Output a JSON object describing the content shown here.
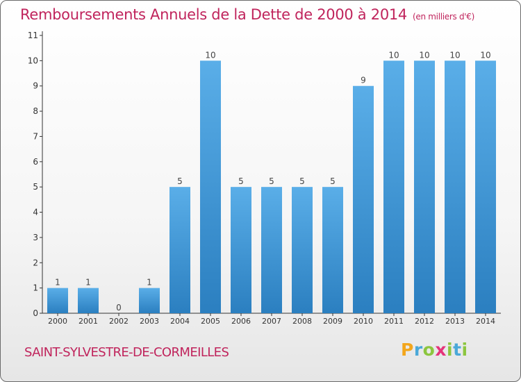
{
  "title": "Remboursements Annuels de la Dette de 2000 à 2014",
  "subtitle": "(en milliers d'€)",
  "commune": "SAINT-SYLVESTRE-DE-CORMEILLES",
  "logo": {
    "letters": [
      "P",
      "r",
      "o",
      "x",
      "i",
      "t",
      "i"
    ],
    "colors": [
      "#f3a61c",
      "#4aa8d8",
      "#8cc63f",
      "#e5337a",
      "#8cc63f",
      "#4aa8d8",
      "#8cc63f"
    ]
  },
  "colors": {
    "title": "#c0245c",
    "bar_light": "#5aaee8",
    "bar_dark": "#2b7fc0",
    "axis": "#333333",
    "grid": "#dddddd"
  },
  "chart_data": {
    "type": "bar",
    "title": "Remboursements Annuels de la Dette de 2000 à 2014",
    "xlabel": "",
    "ylabel": "",
    "categories": [
      "2000",
      "2001",
      "2002",
      "2003",
      "2004",
      "2005",
      "2006",
      "2007",
      "2008",
      "2009",
      "2010",
      "2011",
      "2012",
      "2013",
      "2014"
    ],
    "values": [
      1,
      1,
      0,
      1,
      5,
      10,
      5,
      5,
      5,
      5,
      9,
      10,
      10,
      10,
      10
    ],
    "data_labels": [
      "1",
      "1",
      "0",
      "1",
      "5",
      "10",
      "5",
      "5",
      "5",
      "5",
      "9",
      "10",
      "10",
      "10",
      "10"
    ],
    "ylim": [
      0,
      11
    ],
    "yticks": [
      "0",
      "1",
      "2",
      "3",
      "4",
      "5",
      "6",
      "7",
      "8",
      "9",
      "10",
      "11"
    ],
    "grid": false
  }
}
